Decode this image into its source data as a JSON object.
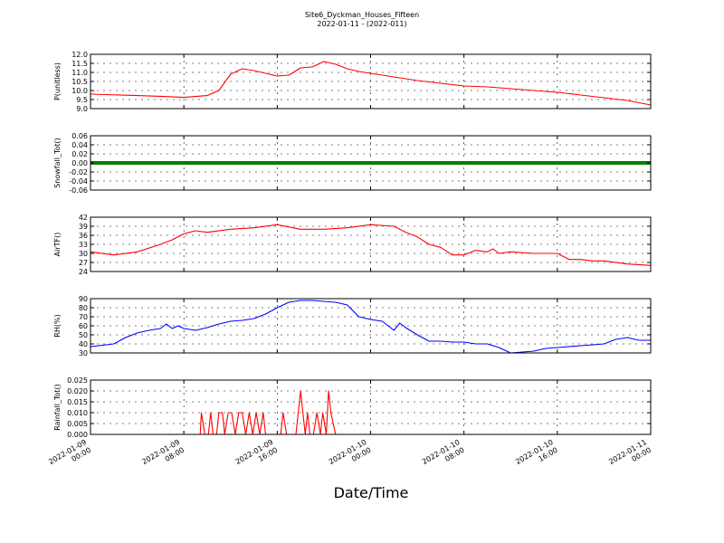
{
  "figure": {
    "title_line1": "Site6_Dyckman_Houses_Fifteen",
    "title_line2": "2022-01-11 - (2022-011)",
    "xlabel": "Date/Time"
  },
  "chart_data": [
    {
      "type": "line",
      "ylabel": "P(unitless)",
      "color": "#ff0000",
      "ylim": [
        9.0,
        12.0
      ],
      "yticks": [
        "9.0",
        "9.5",
        "10.0",
        "10.5",
        "11.0",
        "11.5",
        "12.0"
      ],
      "grid": true,
      "x_hours": [
        0,
        4,
        6,
        8,
        10,
        11,
        12,
        13,
        14,
        15,
        16,
        17,
        18,
        19,
        20,
        21,
        22,
        23,
        24,
        26,
        28,
        30,
        32,
        34,
        36,
        38,
        40,
        42,
        44,
        46,
        48
      ],
      "values": [
        9.8,
        9.72,
        9.68,
        9.62,
        9.72,
        10.0,
        10.9,
        11.2,
        11.1,
        10.95,
        10.8,
        10.85,
        11.25,
        11.3,
        11.6,
        11.45,
        11.2,
        11.05,
        10.95,
        10.75,
        10.55,
        10.4,
        10.25,
        10.2,
        10.1,
        10.0,
        9.9,
        9.75,
        9.6,
        9.45,
        9.2
      ]
    },
    {
      "type": "line",
      "ylabel": "Snowfall_Tot()",
      "color": "#008000",
      "ylim": [
        -0.06,
        0.06
      ],
      "yticks": [
        "-0.06",
        "-0.04",
        "-0.02",
        "0.00",
        "0.02",
        "0.04",
        "0.06"
      ],
      "grid": true,
      "x_hours": [
        0,
        48
      ],
      "values": [
        0,
        0
      ]
    },
    {
      "type": "line",
      "ylabel": "AirTF()",
      "color": "#ff0000",
      "ylim": [
        24,
        42
      ],
      "yticks": [
        "24",
        "27",
        "30",
        "33",
        "36",
        "39",
        "42"
      ],
      "grid": true,
      "x_hours": [
        0,
        2,
        4,
        6,
        7,
        8,
        9,
        10,
        12,
        14,
        16,
        18,
        20,
        22,
        24,
        26,
        27,
        28,
        29,
        30,
        31,
        32,
        33,
        34,
        34.5,
        35,
        36,
        38,
        40,
        41,
        42,
        43,
        44,
        46,
        48
      ],
      "values": [
        30.5,
        29.5,
        30.5,
        33,
        34.5,
        36.5,
        37.5,
        37,
        38,
        38.5,
        39.5,
        38,
        38,
        38.5,
        39.5,
        39,
        37,
        35.5,
        33,
        32,
        29.5,
        29.5,
        31,
        30.5,
        31.5,
        30,
        30.5,
        30,
        30,
        28,
        28,
        27.5,
        27.5,
        26.5,
        26
      ]
    },
    {
      "type": "line",
      "ylabel": "RH(%)",
      "color": "#0000ff",
      "ylim": [
        30,
        90
      ],
      "yticks": [
        "30",
        "40",
        "50",
        "60",
        "70",
        "80",
        "90"
      ],
      "grid": true,
      "x_hours": [
        0,
        2,
        3,
        4,
        5,
        6,
        6.5,
        7,
        7.5,
        8,
        9,
        10,
        11,
        12,
        13,
        14,
        15,
        16,
        17,
        18,
        19,
        20,
        21,
        22,
        23,
        24,
        25,
        26,
        26.5,
        27,
        28,
        29,
        30,
        31,
        32,
        33,
        34,
        35,
        36,
        37,
        38,
        39,
        40,
        42,
        44,
        45,
        46,
        47,
        48
      ],
      "values": [
        37,
        40,
        47,
        52,
        55,
        57,
        62,
        57,
        60,
        57,
        55,
        58,
        62,
        65,
        66,
        68,
        73,
        80,
        86,
        88,
        88,
        87,
        86,
        83,
        70,
        67,
        65,
        55,
        63,
        58,
        50,
        43,
        43,
        42,
        42,
        40,
        40,
        36,
        30,
        31,
        32,
        35,
        36,
        38,
        40,
        45,
        47,
        44,
        44
      ]
    },
    {
      "type": "line",
      "ylabel": "Rainfall_Tot()",
      "color": "#ff0000",
      "ylim": [
        0,
        0.025
      ],
      "yticks": [
        "0.000",
        "0.005",
        "0.010",
        "0.015",
        "0.020",
        "0.025"
      ],
      "grid": true,
      "x_hours": [
        0,
        9.4,
        9.5,
        9.8,
        10.1,
        10.3,
        10.5,
        10.8,
        11,
        11.3,
        11.5,
        11.8,
        12.1,
        12.4,
        12.7,
        13,
        13.3,
        13.6,
        13.9,
        14.2,
        14.5,
        14.8,
        15,
        16.3,
        16.5,
        16.8,
        17.6,
        18,
        18.4,
        18.6,
        18.8,
        19.1,
        19.4,
        19.7,
        19.9,
        20.2,
        20.4,
        20.6,
        21,
        48
      ],
      "values": [
        0,
        0,
        0.01,
        0,
        0,
        0.01,
        0,
        0,
        0.01,
        0.01,
        0,
        0.01,
        0.01,
        0,
        0.01,
        0.01,
        0,
        0.01,
        0,
        0.01,
        0,
        0.01,
        0,
        0,
        0.01,
        0,
        0,
        0.02,
        0,
        0.01,
        0,
        0,
        0.01,
        0,
        0.01,
        0,
        0.02,
        0.01,
        0,
        0
      ]
    }
  ],
  "x_axis": {
    "xlim_hours": [
      0,
      48
    ],
    "tick_hours": [
      0,
      8,
      16,
      24,
      32,
      40,
      48
    ],
    "tick_labels_line1": [
      "2022-01-09",
      "2022-01-09",
      "2022-01-09",
      "2022-01-10",
      "2022-01-10",
      "2022-01-10",
      "2022-01-11"
    ],
    "tick_labels_line2": [
      "00:00",
      "08:00",
      "16:00",
      "00:00",
      "08:00",
      "16:00",
      "00:00"
    ]
  }
}
